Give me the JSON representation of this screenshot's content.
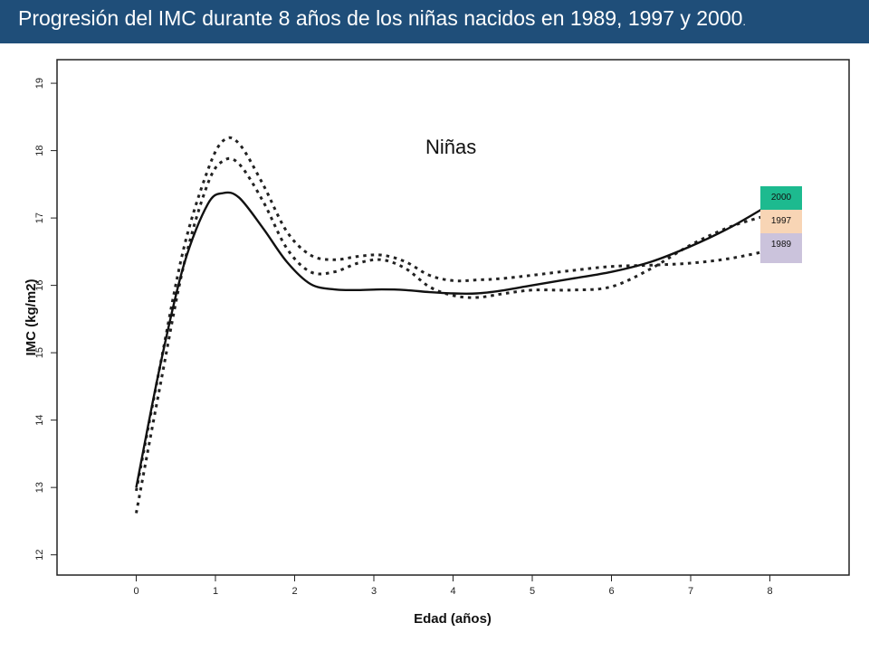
{
  "header": {
    "title": "Progresión del IMC durante 8 años de los niñas nacidos en 1989, 1997 y 2000",
    "title_end": ".",
    "background": "#1f4e79",
    "text_color": "#ffffff"
  },
  "chart_data": {
    "type": "line",
    "title": "",
    "annotation": "Niñas",
    "xlabel": "Edad (años)",
    "ylabel": "IMC (kg/m2)",
    "xlim": [
      -1,
      9.0
    ],
    "ylim": [
      11.7,
      19.35
    ],
    "x_ticks": [
      0,
      1,
      2,
      3,
      4,
      5,
      6,
      7,
      8
    ],
    "y_ticks": [
      12,
      13,
      14,
      15,
      16,
      17,
      18,
      19
    ],
    "grid": false,
    "legend_position": "right",
    "series": [
      {
        "name": "1989",
        "style": "dotted",
        "color": "#222222",
        "legend_color": "#cbc3dc",
        "x": [
          0,
          0.3,
          0.6,
          0.9,
          1.1,
          1.3,
          1.6,
          1.9,
          2.2,
          2.5,
          2.8,
          3.1,
          3.4,
          3.7,
          4.0,
          4.3,
          4.6,
          5.0,
          5.5,
          6.0,
          6.5,
          7.0,
          7.5,
          8.0
        ],
        "y": [
          12.95,
          14.8,
          16.55,
          17.7,
          18.15,
          18.1,
          17.5,
          16.8,
          16.45,
          16.38,
          16.43,
          16.45,
          16.35,
          16.15,
          16.07,
          16.08,
          16.1,
          16.15,
          16.22,
          16.28,
          16.3,
          16.33,
          16.4,
          16.52
        ]
      },
      {
        "name": "1997",
        "style": "dotted",
        "color": "#222222",
        "legend_color": "#f8d5b5",
        "x": [
          0,
          0.3,
          0.6,
          0.9,
          1.1,
          1.3,
          1.6,
          1.9,
          2.2,
          2.5,
          2.8,
          3.1,
          3.4,
          3.7,
          4.0,
          4.3,
          4.6,
          5.0,
          5.5,
          6.0,
          6.5,
          7.0,
          7.5,
          8.0
        ],
        "y": [
          12.62,
          14.5,
          16.3,
          17.5,
          17.85,
          17.8,
          17.25,
          16.55,
          16.2,
          16.2,
          16.33,
          16.38,
          16.25,
          15.98,
          15.85,
          15.82,
          15.87,
          15.93,
          15.93,
          15.98,
          16.25,
          16.6,
          16.87,
          17.05
        ]
      },
      {
        "name": "2000",
        "style": "solid",
        "color": "#111111",
        "legend_color": "#1dba8f",
        "x": [
          0,
          0.3,
          0.6,
          0.9,
          1.1,
          1.3,
          1.6,
          1.9,
          2.2,
          2.5,
          2.8,
          3.1,
          3.4,
          3.7,
          4.0,
          4.3,
          4.6,
          5.0,
          5.5,
          6.0,
          6.5,
          7.0,
          7.5,
          8.0
        ],
        "y": [
          13.0,
          14.8,
          16.3,
          17.2,
          17.37,
          17.3,
          16.85,
          16.35,
          16.02,
          15.94,
          15.93,
          15.94,
          15.93,
          15.9,
          15.88,
          15.88,
          15.92,
          16.0,
          16.1,
          16.2,
          16.35,
          16.58,
          16.86,
          17.2
        ]
      }
    ]
  }
}
